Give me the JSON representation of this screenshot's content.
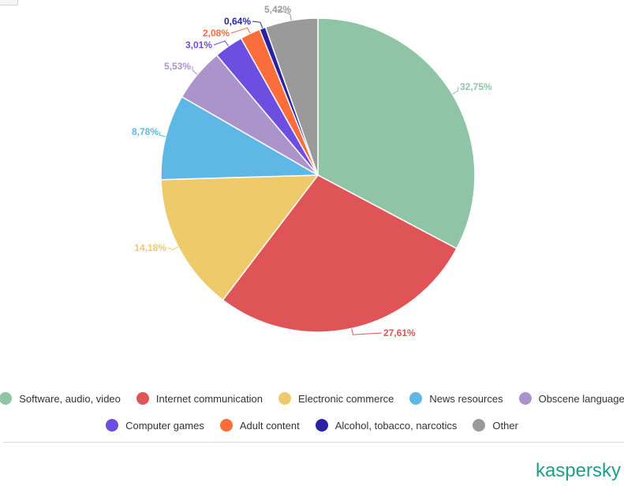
{
  "chart_data": {
    "type": "pie",
    "title": "",
    "start_angle_deg": 0,
    "direction": "clockwise",
    "categories": [
      "Software, audio, video",
      "Internet communication",
      "Electronic commerce",
      "News resources",
      "Obscene language",
      "Computer games",
      "Adult content",
      "Alcohol, tobacco, narcotics",
      "Other"
    ],
    "values": [
      32.75,
      27.61,
      14.18,
      8.78,
      5.53,
      3.01,
      2.08,
      0.64,
      5.42
    ],
    "value_labels": [
      "32,75%",
      "27,61%",
      "14,18%",
      "8,78%",
      "5,53%",
      "3,01%",
      "2,08%",
      "0,64%",
      "5,42%"
    ],
    "colors": [
      "#8fc4a7",
      "#df5457",
      "#efca6a",
      "#5fb7e5",
      "#ab94cb",
      "#6c4fe0",
      "#fb6d3a",
      "#2b22a3",
      "#9a9a9a"
    ],
    "legend_position": "bottom",
    "legend_rows": [
      [
        "Software, audio, video",
        "Internet communication",
        "Electronic commerce",
        "News resources",
        "Obscene language"
      ],
      [
        "Computer games",
        "Adult content",
        "Alcohol, tobacco, narcotics",
        "Other"
      ]
    ]
  },
  "brand": {
    "text": "kaspersky",
    "color": "#1d9f8a"
  }
}
